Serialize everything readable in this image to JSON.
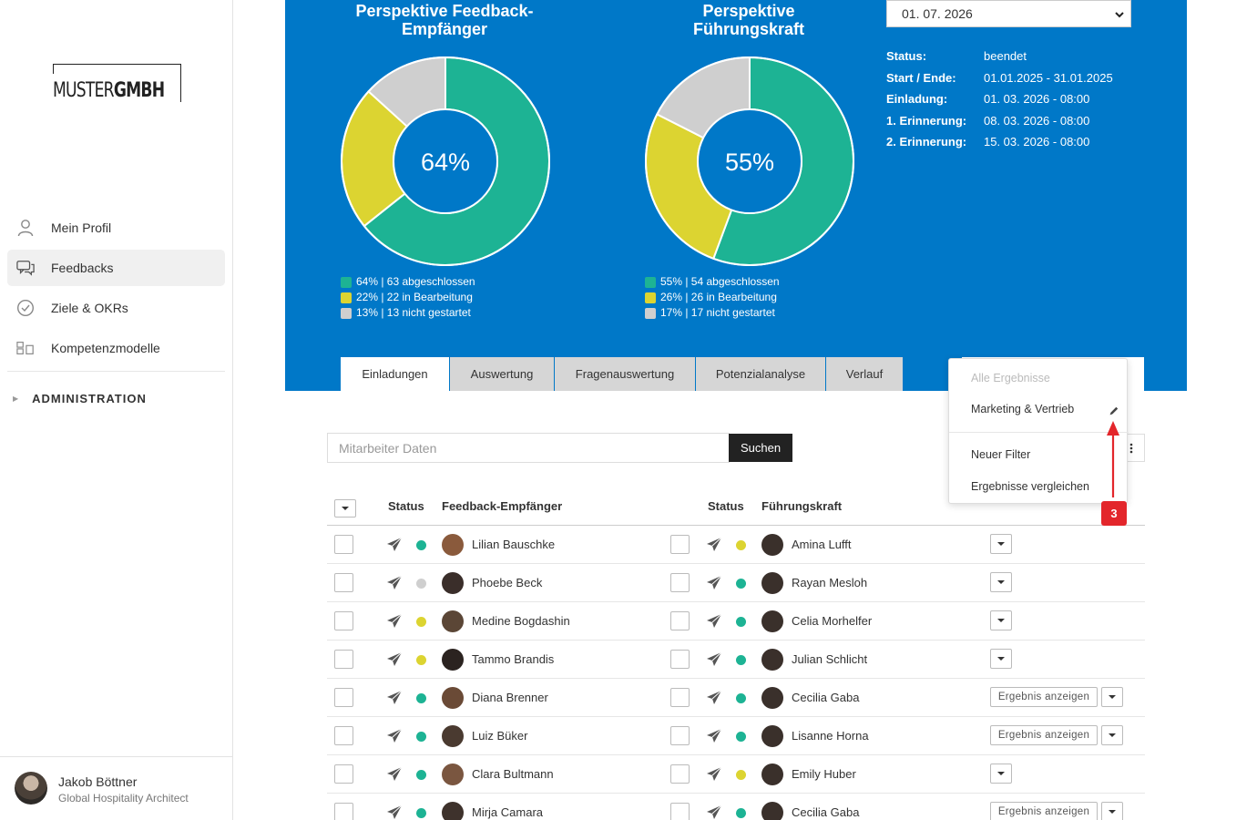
{
  "sidebar": {
    "logo": {
      "part1": "MUSTER",
      "part2": "GMBH"
    },
    "nav": [
      {
        "label": "Mein Profil",
        "icon": "person-icon"
      },
      {
        "label": "Feedbacks",
        "icon": "chat-icon"
      },
      {
        "label": "Ziele & OKRs",
        "icon": "check-circle-icon"
      },
      {
        "label": "Kompetenzmodelle",
        "icon": "grid-icon"
      }
    ],
    "admin_label": "ADMINISTRATION",
    "user": {
      "name": "Jakob Böttner",
      "role": "Global Hospitality Architect"
    }
  },
  "colors": {
    "header": "#0078c8",
    "done": "#1db394",
    "progress": "#dcd431",
    "notstarted": "#cfcfcf",
    "badge": "#e3262b"
  },
  "charts": [
    {
      "title_line1": "Perspektive Feedback-",
      "title_line2": "Empfänger",
      "center": "64%",
      "chart_data": {
        "type": "pie",
        "series": [
          {
            "name": "abgeschlossen",
            "value": 63,
            "percent": 64,
            "color": "#1db394"
          },
          {
            "name": "in Bearbeitung",
            "value": 22,
            "percent": 22,
            "color": "#dcd431"
          },
          {
            "name": "nicht gestartet",
            "value": 13,
            "percent": 13,
            "color": "#cfcfcf"
          }
        ]
      },
      "legend": [
        "64% | 63 abgeschlossen",
        "22% | 22 in Bearbeitung",
        "13% | 13 nicht gestartet"
      ]
    },
    {
      "title_line1": "Perspektive",
      "title_line2": "Führungskraft",
      "center": "55%",
      "chart_data": {
        "type": "pie",
        "series": [
          {
            "name": "abgeschlossen",
            "value": 54,
            "percent": 55,
            "color": "#1db394"
          },
          {
            "name": "in Bearbeitung",
            "value": 26,
            "percent": 26,
            "color": "#dcd431"
          },
          {
            "name": "nicht gestartet",
            "value": 17,
            "percent": 17,
            "color": "#cfcfcf"
          }
        ]
      },
      "legend": [
        "55% | 54 abgeschlossen",
        "26% | 26 in Bearbeitung",
        "17% | 17 nicht gestartet"
      ]
    }
  ],
  "date_select": {
    "value": "01. 07. 2026"
  },
  "info": [
    {
      "label": "Status:",
      "value": "beendet"
    },
    {
      "label": "Start / Ende:",
      "value": "01.01.2025 - 31.01.2025"
    },
    {
      "label": "Einladung:",
      "value": "01. 03. 2026 - 08:00"
    },
    {
      "label": "1. Erinnerung:",
      "value": "08. 03. 2026 - 08:00"
    },
    {
      "label": "2. Erinnerung:",
      "value": "15. 03. 2026 - 08:00"
    }
  ],
  "tabs": [
    "Einladungen",
    "Auswertung",
    "Fragenauswertung",
    "Potenzialanalyse",
    "Verlauf"
  ],
  "search": {
    "placeholder": "Mitarbeiter Daten",
    "button": "Suchen"
  },
  "table": {
    "headers": {
      "status1": "Status",
      "recipient": "Feedback-Empfänger",
      "status2": "Status",
      "manager": "Führungskraft"
    },
    "result_label": "Ergebnis anzeigen",
    "rows": [
      {
        "recipient": "Lilian Bauschke",
        "rstatus": "done",
        "manager": "Amina Lufft",
        "mstatus": "progress",
        "result": false
      },
      {
        "recipient": "Phoebe Beck",
        "rstatus": "notstarted",
        "manager": "Rayan Mesloh",
        "mstatus": "done",
        "result": false
      },
      {
        "recipient": "Medine Bogdashin",
        "rstatus": "progress",
        "manager": "Celia Morhelfer",
        "mstatus": "done",
        "result": false
      },
      {
        "recipient": "Tammo Brandis",
        "rstatus": "progress",
        "manager": "Julian Schlicht",
        "mstatus": "done",
        "result": false
      },
      {
        "recipient": "Diana Brenner",
        "rstatus": "done",
        "manager": "Cecilia Gaba",
        "mstatus": "done",
        "result": true
      },
      {
        "recipient": "Luiz Büker",
        "rstatus": "done",
        "manager": "Lisanne Horna",
        "mstatus": "done",
        "result": true
      },
      {
        "recipient": "Clara Bultmann",
        "rstatus": "done",
        "manager": "Emily Huber",
        "mstatus": "progress",
        "result": false
      },
      {
        "recipient": "Mirja Camara",
        "rstatus": "done",
        "manager": "Cecilia Gaba",
        "mstatus": "done",
        "result": true
      }
    ]
  },
  "menu": {
    "items": [
      "Alle Ergebnisse",
      "Marketing & Vertrieb",
      "Neuer Filter",
      "Ergebnisse vergleichen"
    ]
  },
  "annotation": {
    "badge": "3"
  }
}
